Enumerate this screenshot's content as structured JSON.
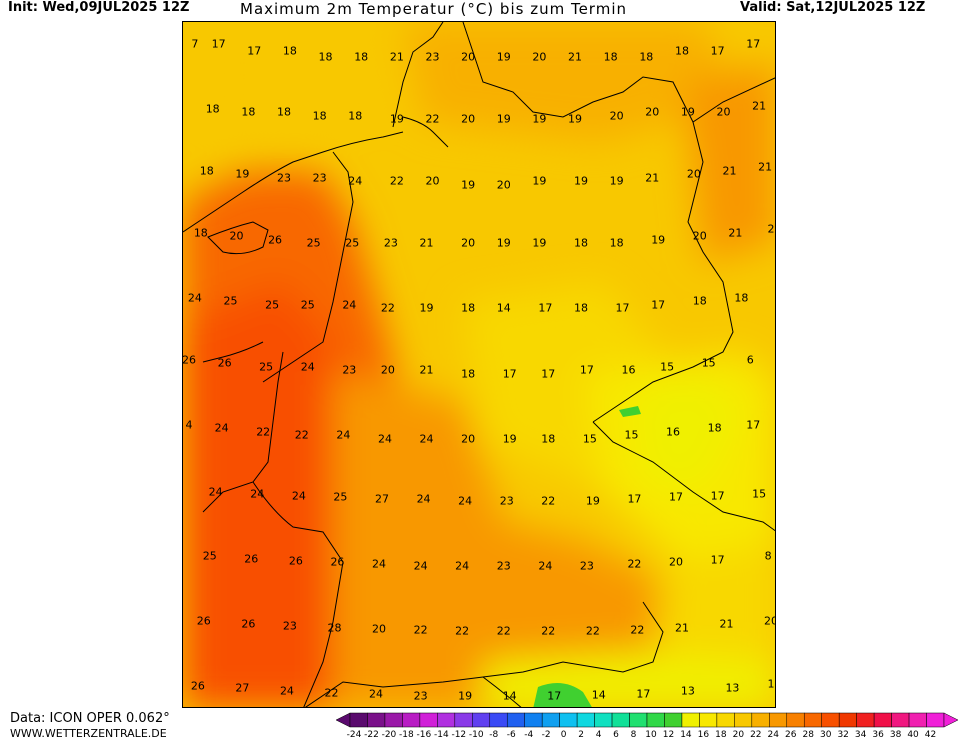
{
  "header": {
    "init": "Init: Wed,09JUL2025 12Z",
    "title": "Maximum 2m Temperatur (°C) bis zum Termin",
    "valid": "Valid: Sat,12JUL2025 12Z"
  },
  "footer": {
    "data_source": "Data: ICON OPER 0.062°",
    "url": "WWW.WETTERZENTRALE.DE"
  },
  "colorbar": {
    "ticks": [
      "-24",
      "-22",
      "-20",
      "-18",
      "-16",
      "-14",
      "-12",
      "-10",
      "-8",
      "-6",
      "-4",
      "-2",
      "0",
      "2",
      "4",
      "6",
      "8",
      "10",
      "12",
      "14",
      "16",
      "18",
      "20",
      "22",
      "24",
      "26",
      "28",
      "30",
      "32",
      "34",
      "36",
      "38",
      "40",
      "42"
    ],
    "colors": [
      "#5a0a6e",
      "#7a108a",
      "#9a18a8",
      "#b81cc4",
      "#d020d8",
      "#b030e0",
      "#8a3ae8",
      "#6040f0",
      "#3a4af5",
      "#2060f0",
      "#1080f0",
      "#10a0f0",
      "#10c0f0",
      "#10d8e0",
      "#10e0c0",
      "#10e098",
      "#20e070",
      "#30d848",
      "#40d030",
      "#f0f000",
      "#f8e800",
      "#f8d800",
      "#f8c800",
      "#f8b000",
      "#f89800",
      "#f88000",
      "#f86800",
      "#f85000",
      "#f03800",
      "#f02020",
      "#f01048",
      "#f01880",
      "#f020b0",
      "#f020d8"
    ]
  },
  "temperature_labels": [
    {
      "v": "7",
      "r": 0.02,
      "c": 0.02
    },
    {
      "v": "17",
      "r": 0.02,
      "c": 0.06
    },
    {
      "v": "17",
      "r": 0.03,
      "c": 0.12
    },
    {
      "v": "18",
      "r": 0.03,
      "c": 0.18
    },
    {
      "v": "18",
      "r": 0.04,
      "c": 0.24
    },
    {
      "v": "18",
      "r": 0.04,
      "c": 0.3
    },
    {
      "v": "21",
      "r": 0.04,
      "c": 0.36
    },
    {
      "v": "23",
      "r": 0.04,
      "c": 0.42
    },
    {
      "v": "20",
      "r": 0.04,
      "c": 0.48
    },
    {
      "v": "19",
      "r": 0.04,
      "c": 0.54
    },
    {
      "v": "20",
      "r": 0.04,
      "c": 0.6
    },
    {
      "v": "21",
      "r": 0.04,
      "c": 0.66
    },
    {
      "v": "18",
      "r": 0.04,
      "c": 0.72
    },
    {
      "v": "18",
      "r": 0.04,
      "c": 0.78
    },
    {
      "v": "18",
      "r": 0.03,
      "c": 0.84
    },
    {
      "v": "17",
      "r": 0.03,
      "c": 0.9
    },
    {
      "v": "17",
      "r": 0.02,
      "c": 0.96
    },
    {
      "v": "18",
      "r": 0.115,
      "c": 0.05
    },
    {
      "v": "18",
      "r": 0.12,
      "c": 0.11
    },
    {
      "v": "18",
      "r": 0.12,
      "c": 0.17
    },
    {
      "v": "18",
      "r": 0.125,
      "c": 0.23
    },
    {
      "v": "18",
      "r": 0.125,
      "c": 0.29
    },
    {
      "v": "19",
      "r": 0.13,
      "c": 0.36
    },
    {
      "v": "22",
      "r": 0.13,
      "c": 0.42
    },
    {
      "v": "20",
      "r": 0.13,
      "c": 0.48
    },
    {
      "v": "19",
      "r": 0.13,
      "c": 0.54
    },
    {
      "v": "19",
      "r": 0.13,
      "c": 0.6
    },
    {
      "v": "19",
      "r": 0.13,
      "c": 0.66
    },
    {
      "v": "20",
      "r": 0.125,
      "c": 0.73
    },
    {
      "v": "20",
      "r": 0.12,
      "c": 0.79
    },
    {
      "v": "19",
      "r": 0.12,
      "c": 0.85
    },
    {
      "v": "20",
      "r": 0.12,
      "c": 0.91
    },
    {
      "v": "21",
      "r": 0.11,
      "c": 0.97
    },
    {
      "v": "18",
      "r": 0.205,
      "c": 0.04
    },
    {
      "v": "19",
      "r": 0.21,
      "c": 0.1
    },
    {
      "v": "23",
      "r": 0.215,
      "c": 0.17
    },
    {
      "v": "23",
      "r": 0.215,
      "c": 0.23
    },
    {
      "v": "24",
      "r": 0.22,
      "c": 0.29
    },
    {
      "v": "22",
      "r": 0.22,
      "c": 0.36
    },
    {
      "v": "20",
      "r": 0.22,
      "c": 0.42
    },
    {
      "v": "19",
      "r": 0.225,
      "c": 0.48
    },
    {
      "v": "20",
      "r": 0.225,
      "c": 0.54
    },
    {
      "v": "19",
      "r": 0.22,
      "c": 0.6
    },
    {
      "v": "19",
      "r": 0.22,
      "c": 0.67
    },
    {
      "v": "19",
      "r": 0.22,
      "c": 0.73
    },
    {
      "v": "21",
      "r": 0.215,
      "c": 0.79
    },
    {
      "v": "20",
      "r": 0.21,
      "c": 0.86
    },
    {
      "v": "21",
      "r": 0.205,
      "c": 0.92
    },
    {
      "v": "21",
      "r": 0.2,
      "c": 0.98
    },
    {
      "v": "18",
      "r": 0.295,
      "c": 0.03
    },
    {
      "v": "20",
      "r": 0.3,
      "c": 0.09
    },
    {
      "v": "26",
      "r": 0.305,
      "c": 0.155
    },
    {
      "v": "25",
      "r": 0.31,
      "c": 0.22
    },
    {
      "v": "25",
      "r": 0.31,
      "c": 0.285
    },
    {
      "v": "23",
      "r": 0.31,
      "c": 0.35
    },
    {
      "v": "21",
      "r": 0.31,
      "c": 0.41
    },
    {
      "v": "20",
      "r": 0.31,
      "c": 0.48
    },
    {
      "v": "19",
      "r": 0.31,
      "c": 0.54
    },
    {
      "v": "19",
      "r": 0.31,
      "c": 0.6
    },
    {
      "v": "18",
      "r": 0.31,
      "c": 0.67
    },
    {
      "v": "18",
      "r": 0.31,
      "c": 0.73
    },
    {
      "v": "19",
      "r": 0.305,
      "c": 0.8
    },
    {
      "v": "20",
      "r": 0.3,
      "c": 0.87
    },
    {
      "v": "21",
      "r": 0.295,
      "c": 0.93
    },
    {
      "v": "2",
      "r": 0.29,
      "c": 0.995
    },
    {
      "v": "24",
      "r": 0.39,
      "c": 0.02
    },
    {
      "v": "25",
      "r": 0.395,
      "c": 0.08
    },
    {
      "v": "25",
      "r": 0.4,
      "c": 0.15
    },
    {
      "v": "25",
      "r": 0.4,
      "c": 0.21
    },
    {
      "v": "24",
      "r": 0.4,
      "c": 0.28
    },
    {
      "v": "22",
      "r": 0.405,
      "c": 0.345
    },
    {
      "v": "19",
      "r": 0.405,
      "c": 0.41
    },
    {
      "v": "18",
      "r": 0.405,
      "c": 0.48
    },
    {
      "v": "14",
      "r": 0.405,
      "c": 0.54
    },
    {
      "v": "17",
      "r": 0.405,
      "c": 0.61
    },
    {
      "v": "18",
      "r": 0.405,
      "c": 0.67
    },
    {
      "v": "17",
      "r": 0.405,
      "c": 0.74
    },
    {
      "v": "17",
      "r": 0.4,
      "c": 0.8
    },
    {
      "v": "18",
      "r": 0.395,
      "c": 0.87
    },
    {
      "v": "18",
      "r": 0.39,
      "c": 0.94
    },
    {
      "v": "26",
      "r": 0.48,
      "c": 0.01
    },
    {
      "v": "26",
      "r": 0.485,
      "c": 0.07
    },
    {
      "v": "25",
      "r": 0.49,
      "c": 0.14
    },
    {
      "v": "24",
      "r": 0.49,
      "c": 0.21
    },
    {
      "v": "23",
      "r": 0.495,
      "c": 0.28
    },
    {
      "v": "20",
      "r": 0.495,
      "c": 0.345
    },
    {
      "v": "21",
      "r": 0.495,
      "c": 0.41
    },
    {
      "v": "18",
      "r": 0.5,
      "c": 0.48
    },
    {
      "v": "17",
      "r": 0.5,
      "c": 0.55
    },
    {
      "v": "17",
      "r": 0.5,
      "c": 0.615
    },
    {
      "v": "17",
      "r": 0.495,
      "c": 0.68
    },
    {
      "v": "16",
      "r": 0.495,
      "c": 0.75
    },
    {
      "v": "15",
      "r": 0.49,
      "c": 0.815
    },
    {
      "v": "15",
      "r": 0.485,
      "c": 0.885
    },
    {
      "v": "6",
      "r": 0.48,
      "c": 0.955
    },
    {
      "v": "4",
      "r": 0.575,
      "c": 0.0
    },
    {
      "v": "24",
      "r": 0.58,
      "c": 0.065
    },
    {
      "v": "22",
      "r": 0.585,
      "c": 0.135
    },
    {
      "v": "22",
      "r": 0.59,
      "c": 0.2
    },
    {
      "v": "24",
      "r": 0.59,
      "c": 0.27
    },
    {
      "v": "24",
      "r": 0.595,
      "c": 0.34
    },
    {
      "v": "24",
      "r": 0.595,
      "c": 0.41
    },
    {
      "v": "20",
      "r": 0.595,
      "c": 0.48
    },
    {
      "v": "19",
      "r": 0.595,
      "c": 0.55
    },
    {
      "v": "18",
      "r": 0.595,
      "c": 0.615
    },
    {
      "v": "15",
      "r": 0.595,
      "c": 0.685
    },
    {
      "v": "15",
      "r": 0.59,
      "c": 0.755
    },
    {
      "v": "16",
      "r": 0.585,
      "c": 0.825
    },
    {
      "v": "18",
      "r": 0.58,
      "c": 0.895
    },
    {
      "v": "17",
      "r": 0.575,
      "c": 0.96
    },
    {
      "v": "24",
      "r": 0.672,
      "c": 0.055
    },
    {
      "v": "24",
      "r": 0.675,
      "c": 0.125
    },
    {
      "v": "24",
      "r": 0.678,
      "c": 0.195
    },
    {
      "v": "25",
      "r": 0.68,
      "c": 0.265
    },
    {
      "v": "27",
      "r": 0.683,
      "c": 0.335
    },
    {
      "v": "24",
      "r": 0.683,
      "c": 0.405
    },
    {
      "v": "24",
      "r": 0.685,
      "c": 0.475
    },
    {
      "v": "23",
      "r": 0.685,
      "c": 0.545
    },
    {
      "v": "22",
      "r": 0.685,
      "c": 0.615
    },
    {
      "v": "19",
      "r": 0.685,
      "c": 0.69
    },
    {
      "v": "17",
      "r": 0.683,
      "c": 0.76
    },
    {
      "v": "17",
      "r": 0.68,
      "c": 0.83
    },
    {
      "v": "17",
      "r": 0.678,
      "c": 0.9
    },
    {
      "v": "15",
      "r": 0.675,
      "c": 0.97
    },
    {
      "v": "25",
      "r": 0.765,
      "c": 0.045
    },
    {
      "v": "26",
      "r": 0.77,
      "c": 0.115
    },
    {
      "v": "26",
      "r": 0.773,
      "c": 0.19
    },
    {
      "v": "26",
      "r": 0.775,
      "c": 0.26
    },
    {
      "v": "24",
      "r": 0.777,
      "c": 0.33
    },
    {
      "v": "24",
      "r": 0.78,
      "c": 0.4
    },
    {
      "v": "24",
      "r": 0.78,
      "c": 0.47
    },
    {
      "v": "23",
      "r": 0.78,
      "c": 0.54
    },
    {
      "v": "24",
      "r": 0.78,
      "c": 0.61
    },
    {
      "v": "23",
      "r": 0.78,
      "c": 0.68
    },
    {
      "v": "22",
      "r": 0.778,
      "c": 0.76
    },
    {
      "v": "20",
      "r": 0.775,
      "c": 0.83
    },
    {
      "v": "17",
      "r": 0.772,
      "c": 0.9
    },
    {
      "v": "8",
      "r": 0.765,
      "c": 0.985
    },
    {
      "v": "26",
      "r": 0.86,
      "c": 0.035
    },
    {
      "v": "26",
      "r": 0.865,
      "c": 0.11
    },
    {
      "v": "23",
      "r": 0.868,
      "c": 0.18
    },
    {
      "v": "28",
      "r": 0.87,
      "c": 0.255
    },
    {
      "v": "20",
      "r": 0.872,
      "c": 0.33
    },
    {
      "v": "22",
      "r": 0.874,
      "c": 0.4
    },
    {
      "v": "22",
      "r": 0.875,
      "c": 0.47
    },
    {
      "v": "22",
      "r": 0.875,
      "c": 0.54
    },
    {
      "v": "22",
      "r": 0.875,
      "c": 0.615
    },
    {
      "v": "22",
      "r": 0.875,
      "c": 0.69
    },
    {
      "v": "22",
      "r": 0.873,
      "c": 0.765
    },
    {
      "v": "21",
      "r": 0.87,
      "c": 0.84
    },
    {
      "v": "21",
      "r": 0.865,
      "c": 0.915
    },
    {
      "v": "20",
      "r": 0.86,
      "c": 0.99
    },
    {
      "v": "26",
      "r": 0.955,
      "c": 0.025
    },
    {
      "v": "27",
      "r": 0.958,
      "c": 0.1
    },
    {
      "v": "24",
      "r": 0.962,
      "c": 0.175
    },
    {
      "v": "22",
      "r": 0.965,
      "c": 0.25
    },
    {
      "v": "24",
      "r": 0.967,
      "c": 0.325
    },
    {
      "v": "23",
      "r": 0.969,
      "c": 0.4
    },
    {
      "v": "19",
      "r": 0.97,
      "c": 0.475
    },
    {
      "v": "14",
      "r": 0.97,
      "c": 0.55
    },
    {
      "v": "17",
      "r": 0.97,
      "c": 0.625
    },
    {
      "v": "14",
      "r": 0.968,
      "c": 0.7
    },
    {
      "v": "17",
      "r": 0.966,
      "c": 0.775
    },
    {
      "v": "13",
      "r": 0.962,
      "c": 0.85
    },
    {
      "v": "13",
      "r": 0.958,
      "c": 0.925
    },
    {
      "v": "1",
      "r": 0.952,
      "c": 0.99
    }
  ]
}
